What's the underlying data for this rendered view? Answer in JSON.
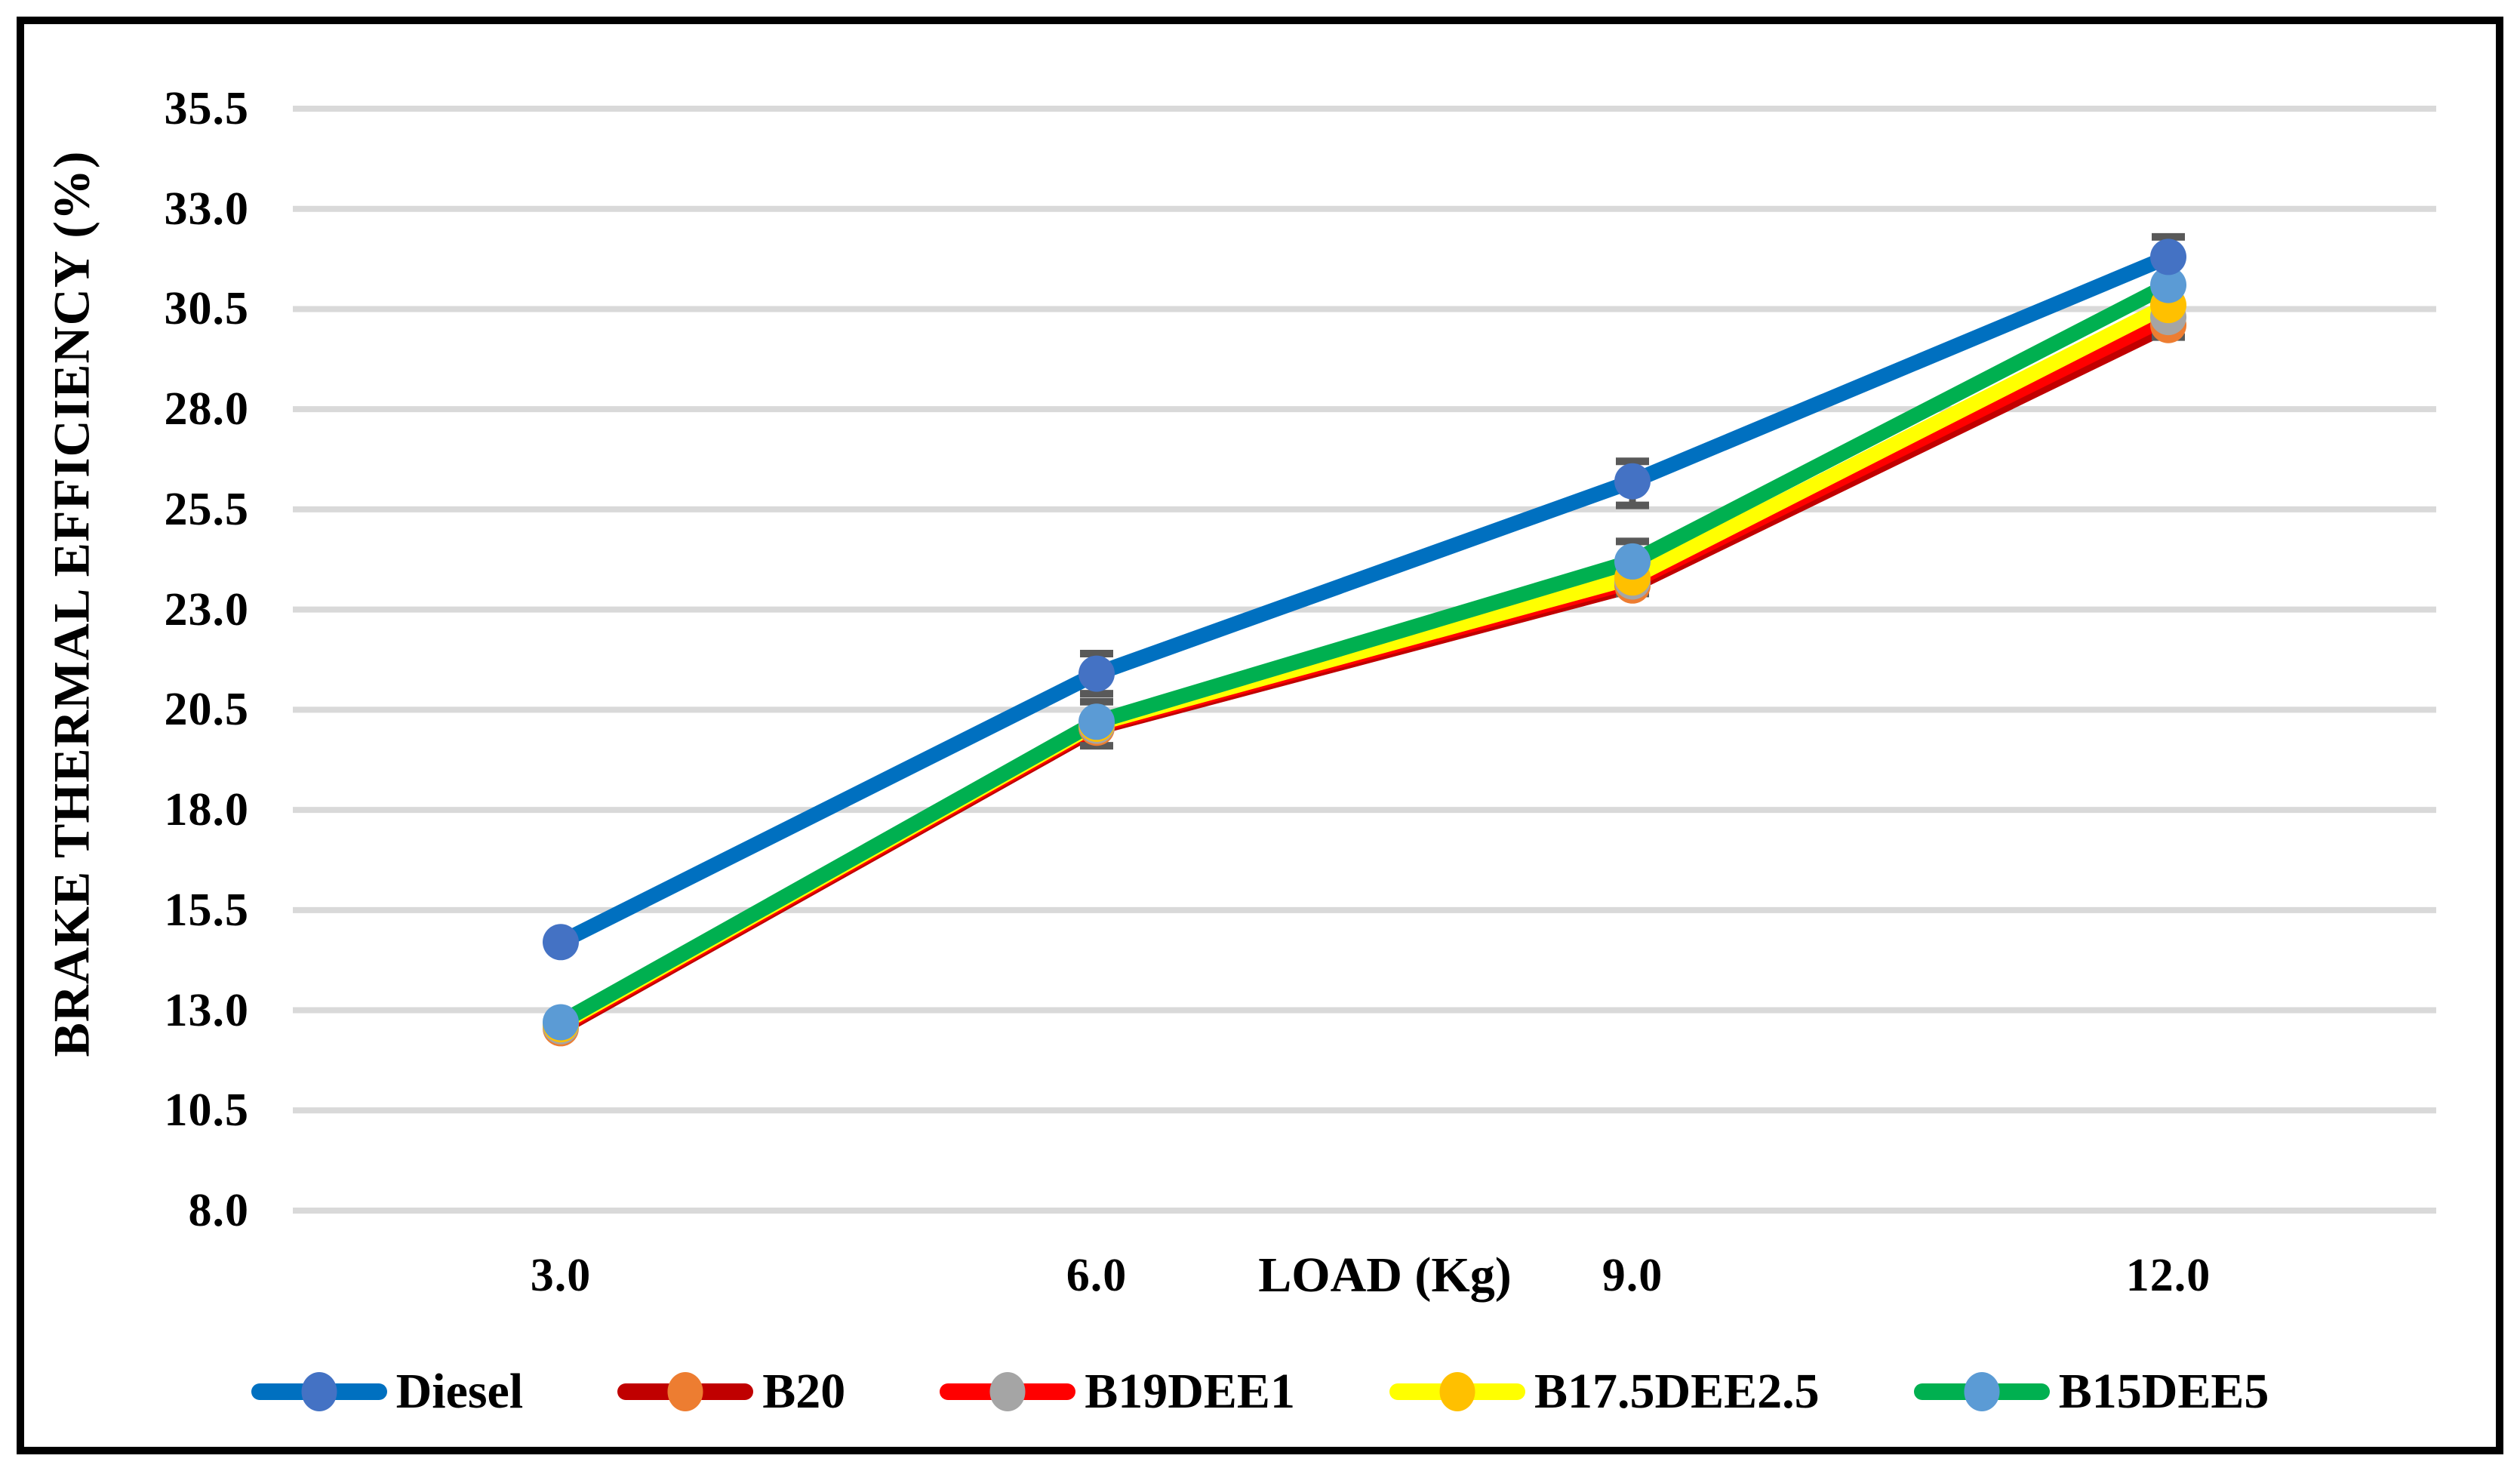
{
  "chart_data": {
    "type": "line",
    "title": "",
    "xlabel": "LOAD (Kg)",
    "ylabel": "BRAKE THERMAL EFFICIENCY (%)",
    "categories": [
      3.0,
      6.0,
      9.0,
      12.0
    ],
    "category_labels": [
      "3.0",
      "6.0",
      "9.0",
      "12.0"
    ],
    "y_tick_labels": [
      "35.5",
      "33.0",
      "30.5",
      "28.0",
      "25.5",
      "23.0",
      "20.5",
      "18.0",
      "15.5",
      "13.0",
      "10.5",
      "8.0"
    ],
    "ylim": [
      8.0,
      35.5
    ],
    "y_step": 2.5,
    "grid": "horizontal",
    "legend_position": "bottom",
    "series": [
      {
        "name": "Diesel",
        "line_color": "#0070C0",
        "marker_color": "#4472C4",
        "values": [
          14.7,
          21.4,
          26.2,
          31.8
        ]
      },
      {
        "name": "B20",
        "line_color": "#C00000",
        "marker_color": "#ED7D31",
        "values": [
          12.55,
          20.05,
          23.6,
          30.1
        ]
      },
      {
        "name": "B19DEE1",
        "line_color": "#FF0000",
        "marker_color": "#A5A5A5",
        "values": [
          12.6,
          20.1,
          23.7,
          30.3
        ]
      },
      {
        "name": "B17.5DEE2.5",
        "line_color": "#FFFF00",
        "marker_color": "#FFC000",
        "values": [
          12.65,
          20.15,
          23.8,
          30.6
        ]
      },
      {
        "name": "B15DEE5",
        "line_color": "#00B050",
        "marker_color": "#5B9BD5",
        "values": [
          12.7,
          20.2,
          24.2,
          31.1
        ]
      }
    ],
    "error_bars": {
      "color": "#595959",
      "items": [
        {
          "category_index": 1,
          "low": 20.9,
          "high": 21.9
        },
        {
          "category_index": 1,
          "low": 19.6,
          "high": 20.7
        },
        {
          "category_index": 2,
          "low": 25.6,
          "high": 26.7
        },
        {
          "category_index": 2,
          "low": 23.4,
          "high": 24.7
        },
        {
          "category_index": 3,
          "low": 29.8,
          "high": 32.3
        }
      ]
    },
    "colors": {
      "gridline": "#D9D9D9",
      "error_bar": "#595959",
      "text": "#000000",
      "frame": "#000000"
    }
  }
}
